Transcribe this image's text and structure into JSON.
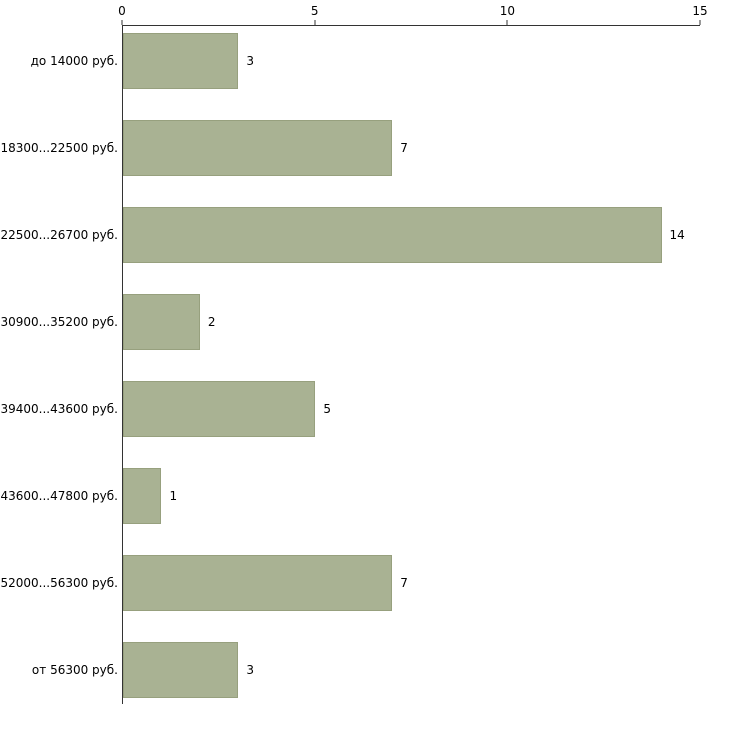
{
  "chart_data": {
    "type": "bar",
    "orientation": "horizontal",
    "title": "",
    "xlabel": "",
    "ylabel": "",
    "categories": [
      "до 14000 руб.",
      "18300...22500 руб.",
      "22500...26700 руб.",
      "30900...35200 руб.",
      "39400...43600 руб.",
      "43600...47800 руб.",
      "52000...56300 руб.",
      "от 56300 руб."
    ],
    "values": [
      3,
      7,
      14,
      2,
      5,
      1,
      7,
      3
    ],
    "x_ticks": [
      0,
      5,
      10,
      15
    ],
    "xlim": [
      0,
      15
    ],
    "grid": false,
    "legend": false,
    "bar_color": "#a9b293",
    "bar_border_color": "#97a07e",
    "axis_color": "#333333",
    "text_color": "#000000",
    "background_color": "#ffffff"
  }
}
